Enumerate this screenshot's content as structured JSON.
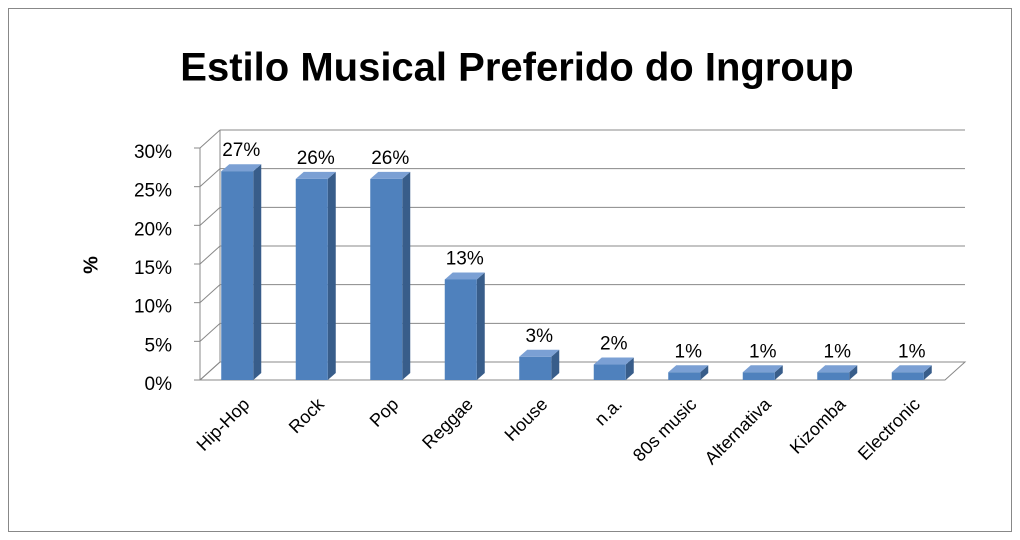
{
  "chart_data": {
    "type": "bar3d",
    "title": "Estilo Musical Preferido do Ingroup",
    "y_label": "%",
    "categories": [
      "Hip-Hop",
      "Rock",
      "Pop",
      "Reggae",
      "House",
      "n.a.",
      "80s music",
      "Alternativa",
      "Kizomba",
      "Electronic"
    ],
    "values": [
      27,
      26,
      26,
      13,
      3,
      2,
      1,
      1,
      1,
      1
    ],
    "value_labels": [
      "27%",
      "26%",
      "26%",
      "13%",
      "3%",
      "2%",
      "1%",
      "1%",
      "1%",
      "1%"
    ],
    "color": "#4f81bd",
    "ylim": [
      0,
      30
    ],
    "yticks": [
      {
        "value": 0,
        "label": "0%"
      },
      {
        "value": 5,
        "label": "5%"
      },
      {
        "value": 10,
        "label": "10%"
      },
      {
        "value": 15,
        "label": "15%"
      },
      {
        "value": 20,
        "label": "20%"
      },
      {
        "value": 25,
        "label": "25%"
      },
      {
        "value": 30,
        "label": "30%"
      }
    ],
    "grid": true
  }
}
